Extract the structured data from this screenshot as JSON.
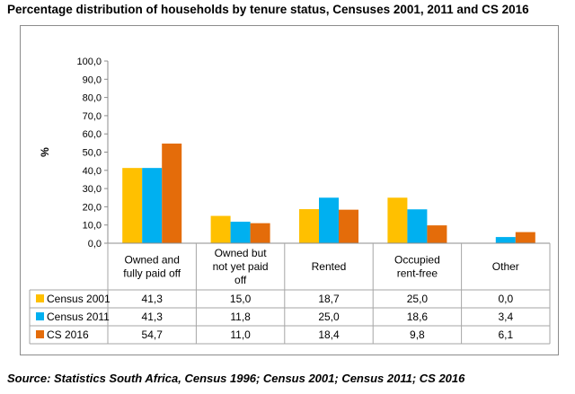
{
  "title": "Percentage distribution of households by tenure status, Censuses 2001, 2011 and CS 2016",
  "source": "Source: Statistics South Africa, Census 1996; Census 2001; Census 2011; CS 2016",
  "chart_data": {
    "type": "bar",
    "ylabel": "%",
    "xlabel": "",
    "ylim": [
      0,
      100
    ],
    "ytick_step": 10,
    "ytick_labels": [
      "0,0",
      "10,0",
      "20,0",
      "30,0",
      "40,0",
      "50,0",
      "60,0",
      "70,0",
      "80,0",
      "90,0",
      "100,0"
    ],
    "categories": [
      [
        "Owned and",
        "fully paid off"
      ],
      [
        "Owned but",
        "not yet paid",
        "off"
      ],
      [
        "Rented"
      ],
      [
        "Occupied",
        "rent-free"
      ],
      [
        "Other"
      ]
    ],
    "series": [
      {
        "name": "Census 2001",
        "color": "#FFC000",
        "values": [
          41.3,
          15.0,
          18.7,
          25.0,
          0.0
        ],
        "labels": [
          "41,3",
          "15,0",
          "18,7",
          "25,0",
          "0,0"
        ]
      },
      {
        "name": "Census 2011",
        "color": "#00B0F0",
        "values": [
          41.3,
          11.8,
          25.0,
          18.6,
          3.4
        ],
        "labels": [
          "41,3",
          "11,8",
          "25,0",
          "18,6",
          "3,4"
        ]
      },
      {
        "name": "CS 2016",
        "color": "#E46C0A",
        "values": [
          54.7,
          11.0,
          18.4,
          9.8,
          6.1
        ],
        "labels": [
          "54,7",
          "11,0",
          "18,4",
          "9,8",
          "6,1"
        ]
      }
    ],
    "grid": false,
    "legend": "data-table"
  }
}
